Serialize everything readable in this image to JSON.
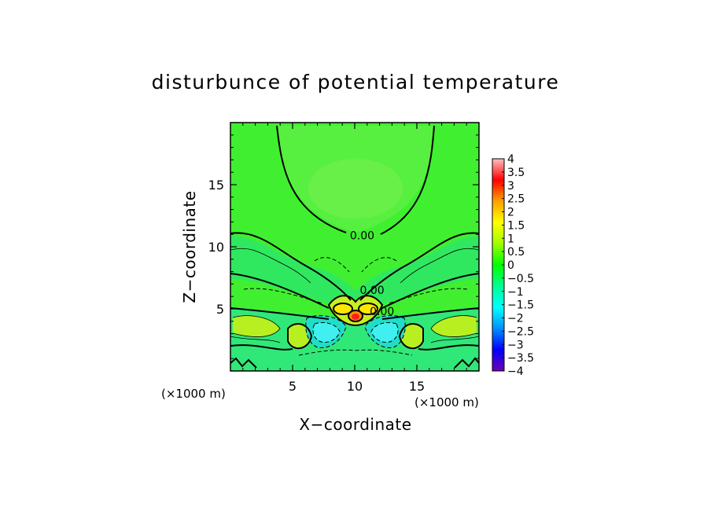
{
  "chart_data": {
    "type": "heatmap",
    "title": "disturbunce of potential temperature",
    "xlabel": "X−coordinate",
    "ylabel": "Z−coordinate",
    "x_unit": "(×1000 m)",
    "z_unit": "(×1000 m)",
    "xlim": [
      0,
      20
    ],
    "ylim": [
      0,
      20
    ],
    "x_ticks": [
      5,
      10,
      15
    ],
    "x_tick_labels": [
      "5",
      "10",
      "15"
    ],
    "y_ticks": [
      5,
      10,
      15
    ],
    "y_tick_labels": [
      "5",
      "10",
      "15"
    ],
    "colorbar": {
      "range": [
        -4,
        4
      ],
      "ticks": [
        4,
        3.5,
        3,
        2.5,
        2,
        1.5,
        1,
        0.5,
        0,
        -0.5,
        -1,
        -1.5,
        -2,
        -2.5,
        -3,
        -3.5,
        -4
      ],
      "tick_labels": [
        "4",
        "3.5",
        "3",
        "2.5",
        "2",
        "1.5",
        "1",
        "0.5",
        "0",
        "−0.5",
        "−1",
        "−1.5",
        "−2",
        "−2.5",
        "−3",
        "−3.5",
        "−4"
      ],
      "colors": [
        "#7000b0",
        "#0000ff",
        "#0090ff",
        "#00ffff",
        "#00ff90",
        "#00ff00",
        "#a0ff00",
        "#ffff00",
        "#ffa000",
        "#ff0000",
        "#ffc0c0"
      ]
    },
    "contour_labels": [
      {
        "text": "0.00",
        "x": 10.6,
        "z": 10.6
      },
      {
        "text": "0.00",
        "x": 11.4,
        "z": 6.2
      },
      {
        "text": "0.00",
        "x": 12.2,
        "z": 4.5
      }
    ],
    "features": [
      {
        "kind": "warm-core",
        "x": 10.0,
        "z": 4.4,
        "value": 3.8
      },
      {
        "kind": "warm-lobe",
        "x": 8.9,
        "z": 5.1,
        "value": 2.2
      },
      {
        "kind": "warm-lobe",
        "x": 11.1,
        "z": 5.1,
        "value": 2.2
      },
      {
        "kind": "cold-lobe",
        "x": 7.5,
        "z": 3.0,
        "value": -1.5
      },
      {
        "kind": "cold-lobe",
        "x": 12.5,
        "z": 3.0,
        "value": -1.5
      },
      {
        "kind": "warm-side",
        "x": 4.8,
        "z": 2.7,
        "value": 1.0
      },
      {
        "kind": "warm-side",
        "x": 15.2,
        "z": 2.7,
        "value": 1.0
      }
    ]
  }
}
